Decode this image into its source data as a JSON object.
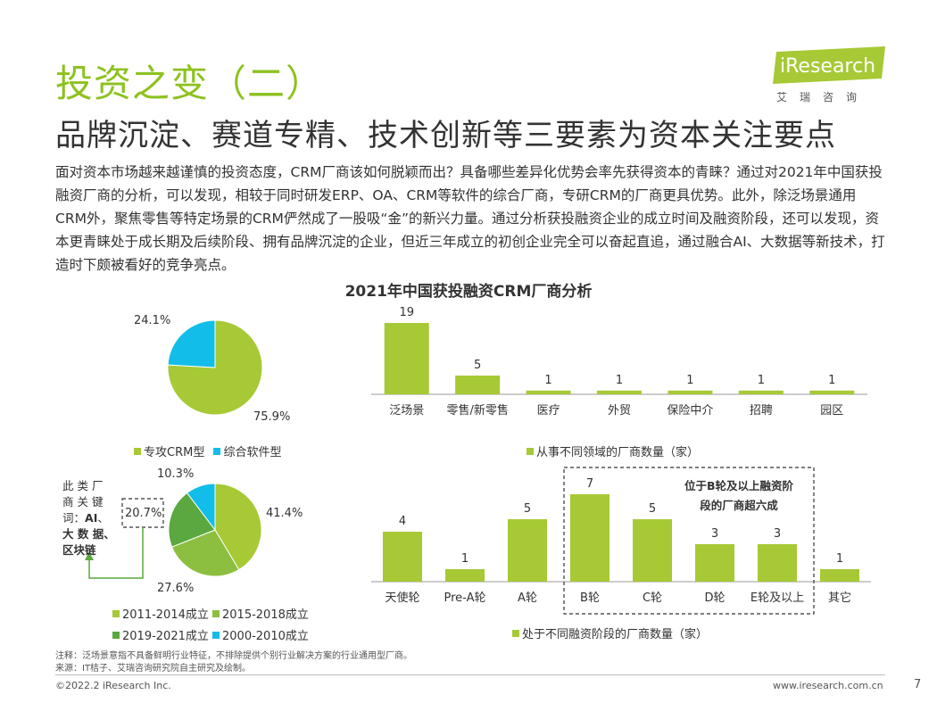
{
  "header": {
    "title": "投资之变（二）",
    "subtitle": "品牌沉淀、赛道专精、技术创新等三要素为资本关注要点",
    "logo_text": "iResearch",
    "logo_sub": "艾瑞咨询"
  },
  "body_text": "面对资本市场越来越谨慎的投资态度，CRM厂商该如何脱颖而出？具备哪些差异化优势会率先获得资本的青睐？通过对2021年中国获投融资厂商的分析，可以发现，相较于同时研发ERP、OA、CRM等软件的综合厂商，专研CRM的厂商更具优势。此外，除泛场景通用CRM外，聚焦零售等特定场景的CRM俨然成了一股吸“金”的新兴力量。通过分析获投融资企业的成立时间及融资阶段，还可以发现，资本更青睐处于成长期及后续阶段、拥有品牌沉淀的企业，但近三年成立的初创企业完全可以奋起直追，通过融合AI、大数据等新技术，打造时下颇被看好的竞争亮点。",
  "main_title": "2021年中国获投融资CRM厂商分析",
  "colors": {
    "green": "#a6c935",
    "cyan": "#12bde9",
    "green_mid": "#8cbf3f",
    "green_dark": "#5aa83f",
    "logo": "#a6c935",
    "callout_border": "#333333"
  },
  "annotation": {
    "text": "此类厂商关键词：",
    "keywords": "AI、大数据、区块链",
    "line1": "此 类 厂",
    "line2": "商 关 键",
    "line3": "词：",
    "line3_kw": "AI",
    "line3_tail": "、",
    "line4": "大 数 据",
    "line4_tail": "、",
    "line5": "区块链"
  },
  "callout": {
    "line1": "位于B轮及以上融资阶",
    "line2": "段的厂商超六成"
  },
  "chart_data": [
    {
      "type": "pie",
      "slices": [
        {
          "name": "专攻CRM型",
          "value": 75.9,
          "label": "75.9%",
          "color": "#a6c935"
        },
        {
          "name": "综合软件型",
          "value": 24.1,
          "label": "24.1%",
          "color": "#12bde9"
        }
      ]
    },
    {
      "type": "bar",
      "categories": [
        "泛场景",
        "零售/新零售",
        "医疗",
        "外贸",
        "保险中介",
        "招聘",
        "园区"
      ],
      "values": [
        19,
        5,
        1,
        1,
        1,
        1,
        1
      ],
      "legend": "从事不同领域的厂商数量（家）",
      "color": "#a6c935"
    },
    {
      "type": "pie",
      "slices": [
        {
          "name": "2011-2014成立",
          "value": 41.4,
          "label": "41.4%",
          "color": "#a6c935"
        },
        {
          "name": "2015-2018成立",
          "value": 27.6,
          "label": "27.6%",
          "color": "#8cbf3f"
        },
        {
          "name": "2019-2021成立",
          "value": 20.7,
          "label": "20.7%",
          "color": "#5aa83f"
        },
        {
          "name": "2000-2010成立",
          "value": 10.3,
          "label": "10.3%",
          "color": "#12bde9"
        }
      ]
    },
    {
      "type": "bar",
      "categories": [
        "天使轮",
        "Pre-A轮",
        "A轮",
        "B轮",
        "C轮",
        "D轮",
        "E轮及以上",
        "其它"
      ],
      "values": [
        4,
        1,
        5,
        7,
        5,
        3,
        3,
        1
      ],
      "legend": "处于不同融资阶段的厂商数量（家）",
      "color": "#a6c935"
    }
  ],
  "notes": {
    "note": "注释：泛场景意指不具备鲜明行业特征，不排除提供个别行业解决方案的行业通用型厂商。",
    "source": "来源：IT桔子、艾瑞咨询研究院自主研究及绘制。"
  },
  "footer": {
    "copyright": "©2022.2 iResearch Inc.",
    "url": "www.iresearch.com.cn",
    "page": "7"
  }
}
